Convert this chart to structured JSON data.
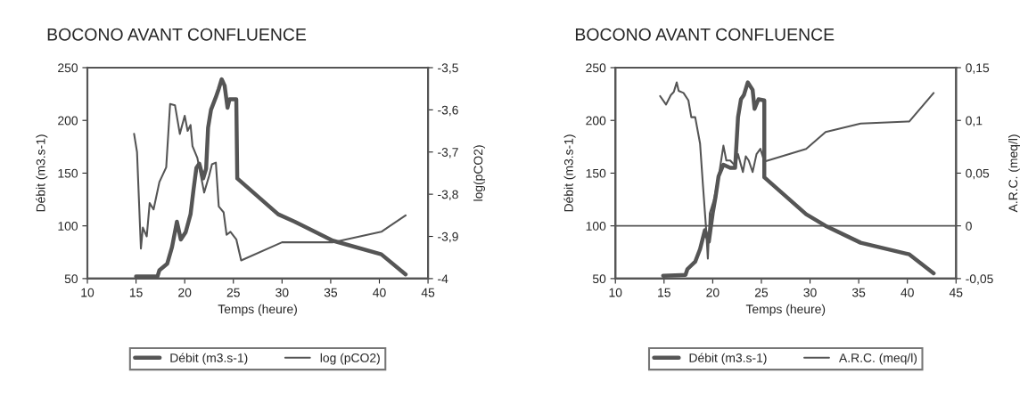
{
  "chart_data": [
    {
      "type": "line",
      "title": "BOCONO AVANT CONFLUENCE",
      "xlabel": "Temps (heure)",
      "ylabel": "Débit (m3.s-1)",
      "y2label": "log(pCO2)",
      "xlim": [
        10,
        45
      ],
      "xticks": [
        10,
        15,
        20,
        25,
        30,
        35,
        40,
        45
      ],
      "ylim": [
        50,
        250
      ],
      "yticks": [
        50,
        100,
        150,
        200,
        250
      ],
      "y2lim": [
        -4,
        -3.5
      ],
      "y2ticks": [
        {
          "value": -4,
          "label": "-4"
        },
        {
          "value": -3.9,
          "label": "-3,9"
        },
        {
          "value": -3.8,
          "label": "-3,8"
        },
        {
          "value": -3.7,
          "label": "-3,7"
        },
        {
          "value": -3.6,
          "label": "-3,6"
        },
        {
          "value": -3.5,
          "label": "-3,5"
        }
      ],
      "legend": "bottom",
      "grid": false,
      "marker": "none",
      "line_style": "solid",
      "series": [
        {
          "name": "Débit (m3.s-1)",
          "color": "#555555",
          "x": [
            15,
            17.2,
            17.4,
            18.2,
            18.7,
            19.2,
            19.6,
            20.1,
            20.6,
            20.9,
            21.2,
            21.5,
            21.9,
            22.2,
            22.4,
            22.7,
            23.2,
            23.5,
            23.8,
            24.1,
            24.4,
            24.6,
            25.3,
            25.4,
            29.6,
            31.3,
            35.2,
            40.2,
            42.7
          ],
          "values": [
            52,
            52,
            58,
            64,
            80,
            104,
            87,
            94,
            111,
            134,
            155,
            159,
            145,
            154,
            193,
            210,
            222,
            230,
            239,
            233,
            212,
            220,
            220,
            145,
            111,
            104,
            86,
            73,
            54
          ]
        },
        {
          "name": "log (pCO2)",
          "color": "#555555",
          "axis": "y2",
          "x": [
            14.8,
            15.1,
            15.5,
            15.7,
            16.1,
            16.4,
            16.8,
            17.4,
            18.1,
            18.5,
            19.0,
            19.5,
            20.0,
            20.3,
            20.6,
            20.8,
            21.3,
            22.0,
            22.5,
            22.8,
            23.2,
            23.5,
            24.0,
            24.3,
            24.7,
            25.3,
            25.8,
            30.0,
            35.2,
            40.2,
            42.7
          ],
          "values": [
            -3.657,
            -3.7,
            -3.929,
            -3.879,
            -3.9,
            -3.821,
            -3.836,
            -3.771,
            -3.736,
            -3.586,
            -3.589,
            -3.657,
            -3.614,
            -3.65,
            -3.636,
            -3.686,
            -3.714,
            -3.796,
            -3.757,
            -3.729,
            -3.725,
            -3.829,
            -3.843,
            -3.896,
            -3.889,
            -3.907,
            -3.957,
            -3.914,
            -3.914,
            -3.889,
            -3.85
          ]
        }
      ]
    },
    {
      "type": "line",
      "title": "BOCONO AVANT CONFLUENCE",
      "xlabel": "Temps (heure)",
      "ylabel": "Débit (m3.s-1)",
      "y2label": "A.R.C. (meq/l)",
      "xlim": [
        10,
        45
      ],
      "xticks": [
        10,
        15,
        20,
        25,
        30,
        35,
        40,
        45
      ],
      "ylim": [
        50,
        250
      ],
      "yticks": [
        50,
        100,
        150,
        200,
        250
      ],
      "y2lim": [
        -0.05,
        0.15
      ],
      "y2ticks": [
        {
          "value": -0.05,
          "label": "-0,05"
        },
        {
          "value": 0,
          "label": "0"
        },
        {
          "value": 0.05,
          "label": "0,05"
        },
        {
          "value": 0.1,
          "label": "0,1"
        },
        {
          "value": 0.15,
          "label": "0,15"
        }
      ],
      "legend": "bottom",
      "grid": false,
      "marker": "none",
      "line_style": "solid",
      "ref_lines": [
        {
          "axis": "y2",
          "value": 0,
          "color": "#555555"
        }
      ],
      "series": [
        {
          "name": "Débit (m3.s-1)",
          "color": "#555555",
          "x": [
            14.9,
            17.2,
            17.4,
            18.2,
            18.7,
            19.2,
            19.6,
            20.0,
            20.3,
            20.6,
            21.1,
            21.8,
            22.3,
            22.6,
            22.9,
            23.2,
            23.6,
            24.1,
            24.3,
            24.7,
            25.3,
            25.3,
            29.6,
            31.6,
            35.2,
            40.2,
            42.7
          ],
          "values": [
            52.7,
            53.5,
            59,
            66,
            78,
            96,
            85,
            112,
            128,
            147,
            158,
            155,
            155,
            203,
            220,
            224,
            236,
            229,
            211,
            220,
            219,
            146,
            111,
            100,
            84,
            73,
            55
          ]
        },
        {
          "name": "A.R.C. (meq/l)",
          "color": "#555555",
          "axis": "y2",
          "x": [
            14.6,
            15.2,
            15.7,
            16.0,
            16.3,
            16.5,
            17.0,
            17.5,
            17.8,
            18.2,
            18.7,
            19.0,
            19.3,
            19.5,
            19.7,
            20.1,
            20.6,
            21.1,
            21.4,
            21.8,
            22.3,
            22.6,
            23.1,
            23.4,
            23.7,
            24.1,
            24.5,
            24.9,
            25.3,
            29.6,
            31.6,
            35.2,
            40.2,
            42.7
          ],
          "values": [
            0.123,
            0.115,
            0.124,
            0.127,
            0.136,
            0.128,
            0.126,
            0.119,
            0.103,
            0.103,
            0.078,
            0.038,
            0.0,
            -0.031,
            0.012,
            0.024,
            0.046,
            0.076,
            0.062,
            0.062,
            0.057,
            0.068,
            0.051,
            0.066,
            0.062,
            0.051,
            0.068,
            0.073,
            0.061,
            0.073,
            0.089,
            0.097,
            0.099,
            0.126
          ]
        }
      ]
    }
  ]
}
